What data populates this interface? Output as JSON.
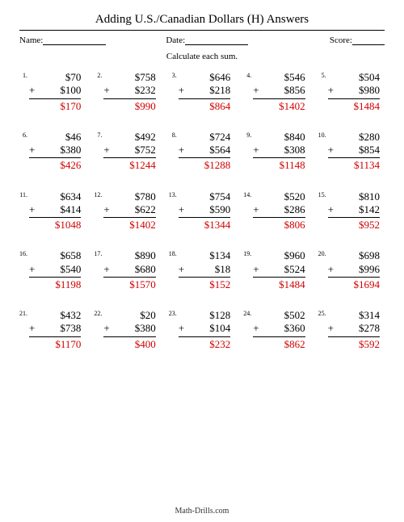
{
  "title": "Adding U.S./Canadian Dollars (H) Answers",
  "labels": {
    "name": "Name:",
    "date": "Date:",
    "score": "Score:"
  },
  "instruction": "Calculate each sum.",
  "footer": "Math-Drills.com",
  "currency": "$",
  "plus": "+",
  "colors": {
    "answer": "#d00000",
    "text": "#000000",
    "background": "#ffffff"
  },
  "fontsizes": {
    "title": 15,
    "meta": 11,
    "instruction": 11,
    "number": 8,
    "problem": 13,
    "footer": 10
  },
  "problems": [
    {
      "n": "1.",
      "a": "$70",
      "b": "$100",
      "sum": "$170"
    },
    {
      "n": "2.",
      "a": "$758",
      "b": "$232",
      "sum": "$990"
    },
    {
      "n": "3.",
      "a": "$646",
      "b": "$218",
      "sum": "$864"
    },
    {
      "n": "4.",
      "a": "$546",
      "b": "$856",
      "sum": "$1402"
    },
    {
      "n": "5.",
      "a": "$504",
      "b": "$980",
      "sum": "$1484"
    },
    {
      "n": "6.",
      "a": "$46",
      "b": "$380",
      "sum": "$426"
    },
    {
      "n": "7.",
      "a": "$492",
      "b": "$752",
      "sum": "$1244"
    },
    {
      "n": "8.",
      "a": "$724",
      "b": "$564",
      "sum": "$1288"
    },
    {
      "n": "9.",
      "a": "$840",
      "b": "$308",
      "sum": "$1148"
    },
    {
      "n": "10.",
      "a": "$280",
      "b": "$854",
      "sum": "$1134"
    },
    {
      "n": "11.",
      "a": "$634",
      "b": "$414",
      "sum": "$1048"
    },
    {
      "n": "12.",
      "a": "$780",
      "b": "$622",
      "sum": "$1402"
    },
    {
      "n": "13.",
      "a": "$754",
      "b": "$590",
      "sum": "$1344"
    },
    {
      "n": "14.",
      "a": "$520",
      "b": "$286",
      "sum": "$806"
    },
    {
      "n": "15.",
      "a": "$810",
      "b": "$142",
      "sum": "$952"
    },
    {
      "n": "16.",
      "a": "$658",
      "b": "$540",
      "sum": "$1198"
    },
    {
      "n": "17.",
      "a": "$890",
      "b": "$680",
      "sum": "$1570"
    },
    {
      "n": "18.",
      "a": "$134",
      "b": "$18",
      "sum": "$152"
    },
    {
      "n": "19.",
      "a": "$960",
      "b": "$524",
      "sum": "$1484"
    },
    {
      "n": "20.",
      "a": "$698",
      "b": "$996",
      "sum": "$1694"
    },
    {
      "n": "21.",
      "a": "$432",
      "b": "$738",
      "sum": "$1170"
    },
    {
      "n": "22.",
      "a": "$20",
      "b": "$380",
      "sum": "$400"
    },
    {
      "n": "23.",
      "a": "$128",
      "b": "$104",
      "sum": "$232"
    },
    {
      "n": "24.",
      "a": "$502",
      "b": "$360",
      "sum": "$862"
    },
    {
      "n": "25.",
      "a": "$314",
      "b": "$278",
      "sum": "$592"
    }
  ]
}
